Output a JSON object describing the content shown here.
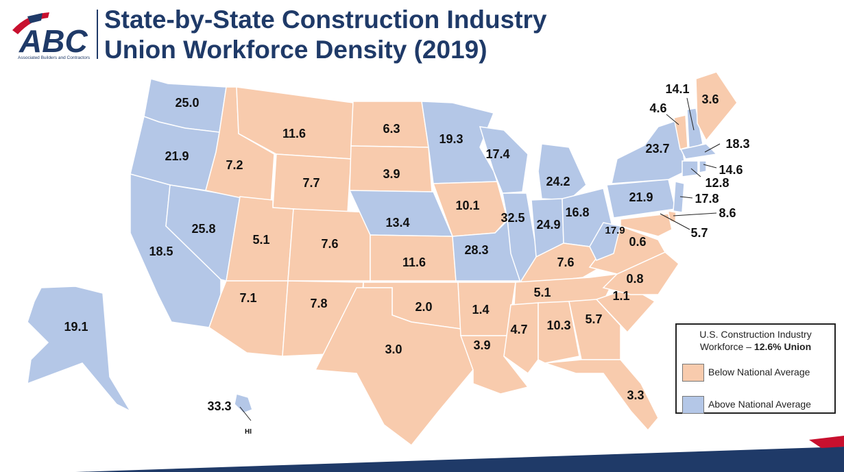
{
  "header": {
    "title_line1": "State-by-State Construction Industry",
    "title_line2": "Union Workforce Density (2019)",
    "logo_text": "ABC",
    "logo_subtext": "Associated Builders and Contractors"
  },
  "colors": {
    "below": "#f8cbad",
    "above": "#b4c7e7",
    "title": "#1f3a68",
    "bar_navy": "#1f3a68",
    "bar_red": "#c8102e"
  },
  "legend": {
    "title_line1": "U.S. Construction Industry",
    "title_line2_prefix": "Workforce – ",
    "title_line2_bold": "12.6% Union",
    "items": [
      {
        "label": "Below National Average",
        "color": "#f8cbad"
      },
      {
        "label": "Above National Average",
        "color": "#b4c7e7"
      }
    ]
  },
  "national_average": 12.6,
  "states": {
    "WA": {
      "value": "25.0",
      "group": "above"
    },
    "OR": {
      "value": "21.9",
      "group": "above"
    },
    "CA": {
      "value": "18.5",
      "group": "above"
    },
    "NV": {
      "value": "25.8",
      "group": "above"
    },
    "ID": {
      "value": "7.2",
      "group": "below"
    },
    "MT": {
      "value": "11.6",
      "group": "below"
    },
    "WY": {
      "value": "7.7",
      "group": "below"
    },
    "UT": {
      "value": "5.1",
      "group": "below"
    },
    "CO": {
      "value": "7.6",
      "group": "below"
    },
    "AZ": {
      "value": "7.1",
      "group": "below"
    },
    "NM": {
      "value": "7.8",
      "group": "below"
    },
    "ND": {
      "value": "6.3",
      "group": "below"
    },
    "SD": {
      "value": "3.9",
      "group": "below"
    },
    "NE": {
      "value": "13.4",
      "group": "above"
    },
    "KS": {
      "value": "11.6",
      "group": "below"
    },
    "OK": {
      "value": "2.0",
      "group": "below"
    },
    "TX": {
      "value": "3.0",
      "group": "below"
    },
    "MN": {
      "value": "19.3",
      "group": "above"
    },
    "IA": {
      "value": "10.1",
      "group": "below"
    },
    "MO": {
      "value": "28.3",
      "group": "above"
    },
    "AR": {
      "value": "1.4",
      "group": "below"
    },
    "LA": {
      "value": "3.9",
      "group": "below"
    },
    "WI": {
      "value": "17.4",
      "group": "above"
    },
    "IL": {
      "value": "32.5",
      "group": "above"
    },
    "MI": {
      "value": "24.2",
      "group": "above"
    },
    "IN": {
      "value": "24.9",
      "group": "above"
    },
    "OH": {
      "value": "16.8",
      "group": "above"
    },
    "KY": {
      "value": "7.6",
      "group": "below"
    },
    "TN": {
      "value": "5.1",
      "group": "below"
    },
    "MS": {
      "value": "4.7",
      "group": "below"
    },
    "AL": {
      "value": "10.3",
      "group": "below"
    },
    "GA": {
      "value": "5.7",
      "group": "below"
    },
    "FL": {
      "value": "3.3",
      "group": "below"
    },
    "SC": {
      "value": "1.1",
      "group": "below"
    },
    "NC": {
      "value": "0.8",
      "group": "below"
    },
    "VA": {
      "value": "0.6",
      "group": "below"
    },
    "WV": {
      "value": "17.9",
      "group": "above"
    },
    "PA": {
      "value": "21.9",
      "group": "above"
    },
    "NY": {
      "value": "23.7",
      "group": "above"
    },
    "VT": {
      "value": "4.6",
      "group": "below"
    },
    "NH": {
      "value": "14.1",
      "group": "above"
    },
    "ME": {
      "value": "3.6",
      "group": "below"
    },
    "MA": {
      "value": "18.3",
      "group": "above"
    },
    "RI": {
      "value": "14.6",
      "group": "above"
    },
    "CT": {
      "value": "12.8",
      "group": "above"
    },
    "NJ": {
      "value": "17.8",
      "group": "above"
    },
    "DE": {
      "value": "8.6",
      "group": "below"
    },
    "MD": {
      "value": "5.7",
      "group": "below"
    },
    "AK": {
      "value": "19.1",
      "group": "above"
    },
    "HI": {
      "value": "33.3",
      "group": "above",
      "tag": "HI"
    }
  }
}
